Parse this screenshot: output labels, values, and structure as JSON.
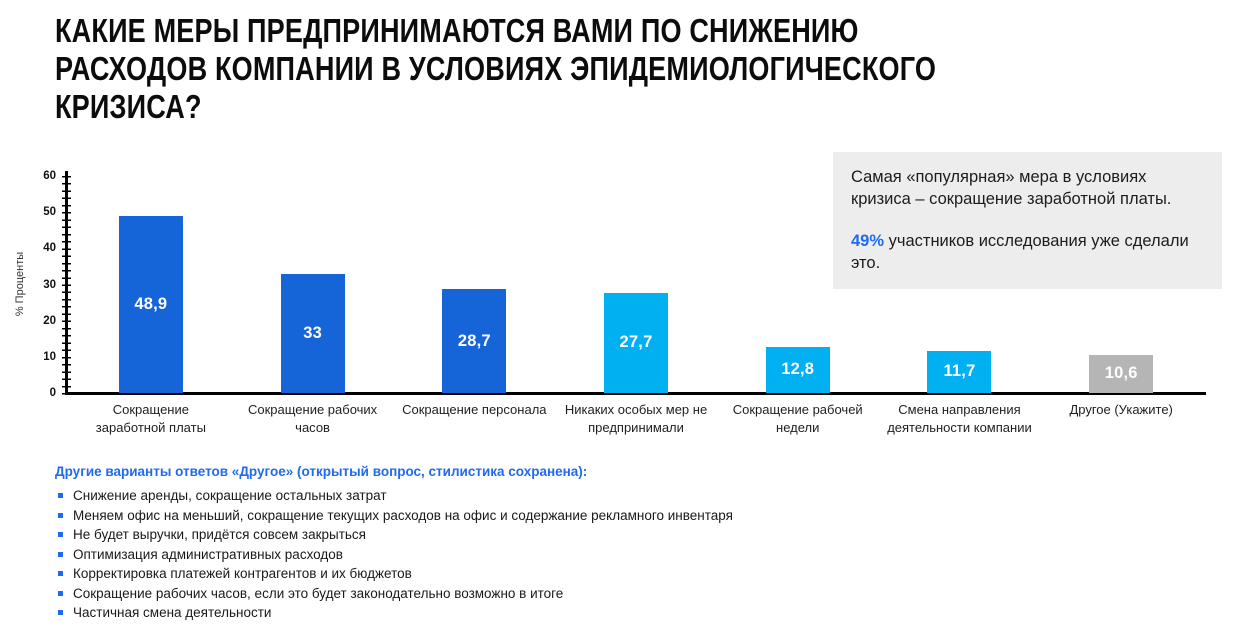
{
  "title": "КАКИЕ МЕРЫ ПРЕДПРИНИМАЮТСЯ ВАМИ ПО СНИЖЕНИЮ\nРАСХОДОВ КОМПАНИИ В УСЛОВИЯХ  ЭПИДЕМИОЛОГИЧЕСКОГО\nКРИЗИСА?",
  "colors": {
    "primary_blue": "#1565d8",
    "light_blue": "#00b0f0",
    "gray": "#b5b5b5",
    "accent_text": "#1f6bf0",
    "callout_bg": "#ededed"
  },
  "chart_data": {
    "type": "bar",
    "title": "",
    "xlabel": "",
    "ylabel": "% Проценты",
    "ylim": [
      0,
      60
    ],
    "ytick_step": 10,
    "grid": false,
    "legend": "none",
    "categories": [
      "Сокращение заработной платы",
      "Сокращение рабочих часов",
      "Сокращение персонала",
      "Никаких особых мер не предпринимали",
      "Сокращение рабочей недели",
      "Смена направления деятельности компании",
      "Другое (Укажите)"
    ],
    "values": [
      48.9,
      33,
      28.7,
      27.7,
      12.8,
      11.7,
      10.6
    ],
    "value_labels": [
      "48,9",
      "33",
      "28,7",
      "27,7",
      "12,8",
      "11,7",
      "10,6"
    ],
    "bar_colors": [
      "#1565d8",
      "#1565d8",
      "#1565d8",
      "#00b0f0",
      "#00b0f0",
      "#00b0f0",
      "#b5b5b5"
    ]
  },
  "callout": {
    "line1": "Самая «популярная» мера в условиях кризиса – сокращение заработной платы.",
    "stat": "49%",
    "line2_rest": " участников исследования уже сделали это."
  },
  "other_answers": {
    "heading": "Другие варианты ответов «Другое» (открытый вопрос, стилистика сохранена):",
    "items": [
      "Снижение аренды, сокращение остальных затрат",
      "Меняем офис на меньший, сокращение текущих расходов на офис и содержание рекламного инвентаря",
      "Не будет выручки, придётся совсем закрыться",
      "Оптимизация административных расходов",
      "Корректировка платежей контрагентов и их бюджетов",
      "Сокращение рабочих часов, если это будет законодательно возможно в итоге",
      "Частичная смена деятельности"
    ]
  }
}
